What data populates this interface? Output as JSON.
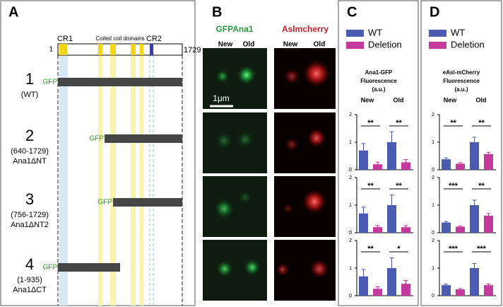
{
  "panels": {
    "A": {
      "label": "A",
      "domain": {
        "start": "1",
        "end": "1729",
        "cr1": "CR1",
        "coiled": "Coiled coil domains",
        "cr2": "CR2"
      },
      "constructs": [
        {
          "number": "1",
          "range": "(WT)",
          "tag": "GFP"
        },
        {
          "number": "2",
          "range": "(640-1729)",
          "name": "Ana1ΔNT",
          "tag": "GFP"
        },
        {
          "number": "3",
          "range": "(756-1729)",
          "name": "Ana1ΔNT2",
          "tag": "GFP"
        },
        {
          "number": "4",
          "range": "(1-935)",
          "name": "Ana1ΔCT",
          "tag": "GFP"
        }
      ]
    },
    "B": {
      "label": "B",
      "channels": [
        "GFPAna1",
        "Aslmcherry"
      ],
      "columns": [
        "New",
        "Old"
      ],
      "scale_bar": "1μm"
    },
    "C": {
      "label": "C",
      "series": [
        {
          "name": "WT",
          "color": "#4a5bb0"
        },
        {
          "name": "Deletion",
          "color": "#c43a9c"
        }
      ],
      "title": [
        "Ana1-GFP",
        "Fluorescence",
        "(a.u.)"
      ],
      "categories": [
        "New",
        "Old"
      ],
      "charts": [
        {
          "ylim": [
            0,
            2
          ],
          "yticks": [
            0,
            1,
            2
          ],
          "series": [
            {
              "values": [
                0.7,
                1.0
              ],
              "errors": [
                0.25,
                0.38
              ]
            },
            {
              "values": [
                0.2,
                0.27
              ],
              "errors": [
                0.08,
                0.1
              ]
            }
          ],
          "significance": [
            "**",
            "**"
          ]
        },
        {
          "ylim": [
            0,
            2
          ],
          "yticks": [
            0,
            1,
            2
          ],
          "series": [
            {
              "values": [
                0.7,
                1.0
              ],
              "errors": [
                0.23,
                0.37
              ]
            },
            {
              "values": [
                0.2,
                0.2
              ],
              "errors": [
                0.06,
                0.06
              ]
            }
          ],
          "significance": [
            "**",
            "**"
          ]
        },
        {
          "ylim": [
            0,
            2
          ],
          "yticks": [
            0,
            1,
            2
          ],
          "series": [
            {
              "values": [
                0.7,
                1.0
              ],
              "errors": [
                0.25,
                0.37
              ]
            },
            {
              "values": [
                0.25,
                0.43
              ],
              "errors": [
                0.07,
                0.12
              ]
            }
          ],
          "significance": [
            "**",
            "*"
          ]
        }
      ]
    },
    "D": {
      "label": "D",
      "series": [
        {
          "name": "WT",
          "color": "#4a5bb0"
        },
        {
          "name": "Deletion",
          "color": "#c43a9c"
        }
      ],
      "title": [
        "eAsl-mCherry",
        "Fluorescence",
        "(a.u.)"
      ],
      "categories": [
        "New",
        "Old"
      ],
      "charts": [
        {
          "ylim": [
            0,
            2
          ],
          "yticks": [
            0,
            1,
            2
          ],
          "series": [
            {
              "values": [
                0.38,
                1.0
              ],
              "errors": [
                0.05,
                0.18
              ]
            },
            {
              "values": [
                0.22,
                0.57
              ],
              "errors": [
                0.04,
                0.06
              ]
            }
          ],
          "significance": [
            "**",
            "**"
          ]
        },
        {
          "ylim": [
            0,
            2
          ],
          "yticks": [
            0,
            1,
            2
          ],
          "series": [
            {
              "values": [
                0.37,
                1.0
              ],
              "errors": [
                0.04,
                0.18
              ]
            },
            {
              "values": [
                0.22,
                0.62
              ],
              "errors": [
                0.03,
                0.08
              ]
            }
          ],
          "significance": [
            "***",
            "**"
          ]
        },
        {
          "ylim": [
            0,
            2
          ],
          "yticks": [
            0,
            1,
            2
          ],
          "series": [
            {
              "values": [
                0.38,
                1.0
              ],
              "errors": [
                0.04,
                0.17
              ]
            },
            {
              "values": [
                0.23,
                0.38
              ],
              "errors": [
                0.03,
                0.05
              ]
            }
          ],
          "significance": [
            "***",
            "***"
          ]
        }
      ]
    }
  }
}
